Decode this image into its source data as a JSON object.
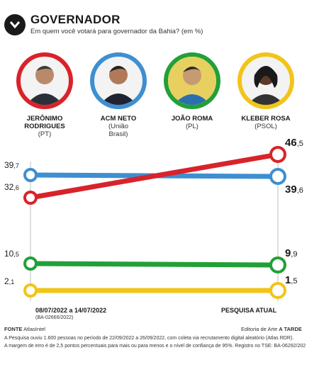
{
  "header": {
    "icon": "chevron-down-icon",
    "title": "GOVERNADOR",
    "subtitle": "Em quem você votará para governador da Bahia? (em %)"
  },
  "candidates": [
    {
      "name1": "JERÔNIMO",
      "name2": "RODRIGUES",
      "party": "(PT)",
      "color": "#d8232a"
    },
    {
      "name1": "ACM NETO",
      "name2": "",
      "party": "(União",
      "party2": "Brasil)",
      "color": "#3d8fd1"
    },
    {
      "name1": "JOÃO ROMA",
      "name2": "",
      "party": "(PL)",
      "color": "#22a038"
    },
    {
      "name1": "KLEBER ROSA",
      "name2": "",
      "party": "(PSOL)",
      "color": "#f2c418"
    }
  ],
  "chart_data": {
    "type": "line",
    "x": [
      "08/07/2022 a 14/07/2022",
      "PESQUISA ATUAL"
    ],
    "series": [
      {
        "name": "JERÔNIMO RODRIGUES",
        "color": "#d8232a",
        "values": [
          32.6,
          46.5
        ],
        "labels": [
          [
            "32",
            ",6"
          ],
          [
            "46",
            ",5"
          ]
        ]
      },
      {
        "name": "ACM NETO",
        "color": "#3d8fd1",
        "values": [
          39.7,
          39.6
        ],
        "labels": [
          [
            "39",
            ",7"
          ],
          [
            "39",
            ",6"
          ]
        ]
      },
      {
        "name": "JOÃO ROMA",
        "color": "#22a038",
        "values": [
          10.5,
          9.9
        ],
        "labels": [
          [
            "10",
            ",5"
          ],
          [
            "9",
            ",9"
          ]
        ]
      },
      {
        "name": "KLEBER ROSA",
        "color": "#f2c418",
        "values": [
          2.1,
          1.5
        ],
        "labels": [
          [
            "2",
            ",1"
          ],
          [
            "1",
            ",5"
          ]
        ]
      }
    ]
  },
  "footer": {
    "source_label": "FONTE",
    "source_value": "AtlasIntel",
    "credit_prefix": "Editoria de Arte",
    "credit_name": "A TARDE",
    "note1": "A Pesquisa ouviu 1.600 pessoas no período de 22/09/2022 a 26/09/2022, com coleta via recrutamento digital aleatório (Atlas RDR).",
    "note2": "A margem de erro é de 2,5 pontos percentuais para mais ou para menos e o nível de confiança de 95%. Registro no TSE: BA-06292/202"
  },
  "first_period_note": "(BA-02666/2022)"
}
